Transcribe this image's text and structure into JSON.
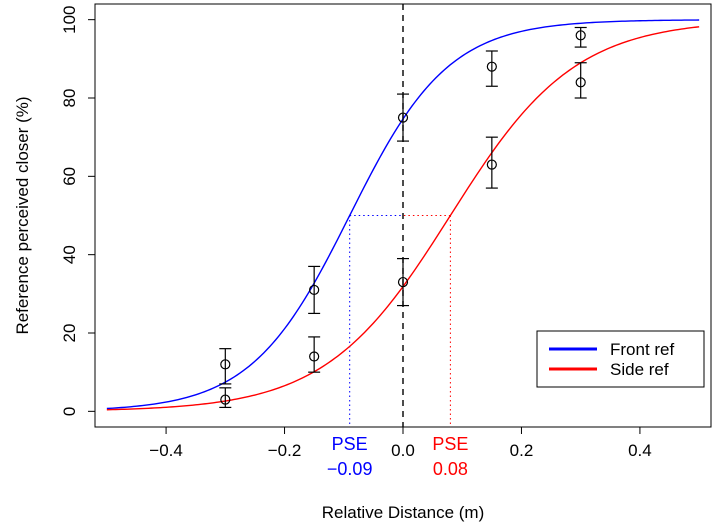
{
  "chart_data": {
    "type": "scatter",
    "xlabel": "Relative Distance (m)",
    "ylabel": "Reference perceived closer (%)",
    "xlim": [
      -0.52,
      0.52
    ],
    "ylim": [
      -4,
      104
    ],
    "xticks": [
      -0.4,
      -0.2,
      0.0,
      0.2,
      0.4
    ],
    "xtick_labels": [
      "−0.4",
      "−0.2",
      "0.0",
      "0.2",
      "0.4"
    ],
    "yticks": [
      0,
      20,
      40,
      60,
      80,
      100
    ],
    "ytick_labels": [
      "0",
      "20",
      "40",
      "60",
      "80",
      "100"
    ],
    "grid": false,
    "legend_position": "bottom-right",
    "reference_line": {
      "x": 0.0,
      "style": "dashed",
      "color": "#000000"
    },
    "pse_level": 50,
    "series": [
      {
        "name": "Front ref",
        "color": "#0000ff",
        "fit": {
          "model": "logistic",
          "pse": -0.09,
          "slope": 12.0,
          "x_range": [
            -0.5,
            0.5
          ]
        },
        "points": [
          {
            "x": -0.3,
            "y": 12,
            "err_low": 7,
            "err_high": 16
          },
          {
            "x": -0.15,
            "y": 31,
            "err_low": 25,
            "err_high": 37
          },
          {
            "x": 0.0,
            "y": 75,
            "err_low": 69,
            "err_high": 81
          },
          {
            "x": 0.15,
            "y": 88,
            "err_low": 83,
            "err_high": 92
          },
          {
            "x": 0.3,
            "y": 96,
            "err_low": 93,
            "err_high": 98
          }
        ],
        "pse_label": "PSE",
        "pse_value_label": "−0.09"
      },
      {
        "name": "Side ref",
        "color": "#ff0000",
        "fit": {
          "model": "logistic",
          "pse": 0.08,
          "slope": 9.5,
          "x_range": [
            -0.5,
            0.5
          ]
        },
        "points": [
          {
            "x": -0.3,
            "y": 3,
            "err_low": 1,
            "err_high": 6
          },
          {
            "x": -0.15,
            "y": 14,
            "err_low": 10,
            "err_high": 19
          },
          {
            "x": 0.0,
            "y": 33,
            "err_low": 27,
            "err_high": 39
          },
          {
            "x": 0.15,
            "y": 63,
            "err_low": 57,
            "err_high": 70
          },
          {
            "x": 0.3,
            "y": 84,
            "err_low": 80,
            "err_high": 89
          }
        ],
        "pse_label": "PSE",
        "pse_value_label": "0.08"
      }
    ]
  }
}
